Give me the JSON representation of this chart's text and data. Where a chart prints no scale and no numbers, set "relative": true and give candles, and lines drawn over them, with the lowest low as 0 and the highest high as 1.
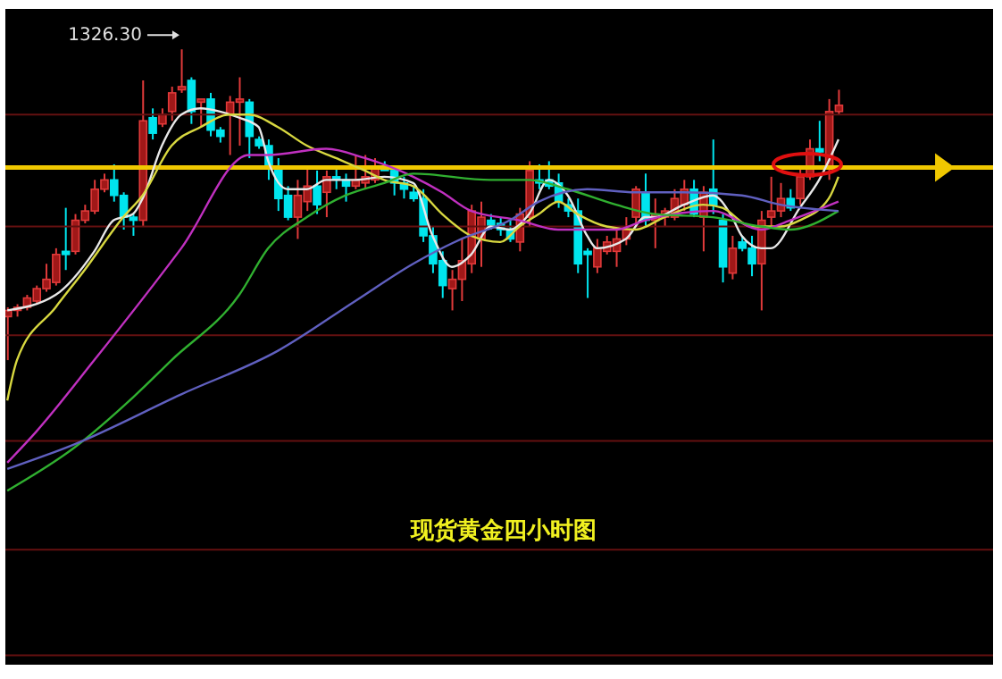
{
  "chart_data": {
    "type": "candlestick",
    "title": "现货黄金四小时图",
    "relative": true,
    "categories": [
      null,
      null,
      null,
      null,
      null,
      null,
      null,
      null,
      null,
      null,
      null,
      null,
      null,
      null,
      null,
      null,
      null,
      null,
      null,
      null,
      null,
      null,
      null,
      null,
      null,
      null,
      null,
      null,
      null,
      null,
      null,
      null,
      null,
      null,
      null,
      null,
      null,
      null,
      null,
      null,
      null,
      null,
      null,
      null,
      null,
      null,
      null,
      null,
      null,
      null,
      null,
      null,
      null,
      null,
      null,
      null,
      null,
      null,
      null,
      null,
      null,
      null,
      null,
      null,
      null,
      null,
      null,
      null,
      null,
      null,
      null,
      null,
      null,
      null,
      null,
      null,
      null,
      null,
      null,
      null,
      null,
      null,
      null,
      null,
      null,
      null,
      null
    ],
    "ohlc": [
      [
        0.14,
        0.17,
        0,
        0.16
      ],
      [
        0.16,
        0.18,
        0.14,
        0.17
      ],
      [
        0.17,
        0.21,
        0.16,
        0.2
      ],
      [
        0.19,
        0.24,
        0.18,
        0.23
      ],
      [
        0.23,
        0.31,
        0.22,
        0.26
      ],
      [
        0.25,
        0.36,
        0.24,
        0.34
      ],
      [
        0.35,
        0.49,
        0.29,
        0.34
      ],
      [
        0.35,
        0.47,
        0.34,
        0.45
      ],
      [
        0.45,
        0.5,
        0.44,
        0.48
      ],
      [
        0.48,
        0.58,
        0.47,
        0.55
      ],
      [
        0.55,
        0.6,
        0.54,
        0.58
      ],
      [
        0.58,
        0.63,
        0.51,
        0.53
      ],
      [
        0.53,
        0.54,
        0.42,
        0.46
      ],
      [
        0.46,
        0.47,
        0.4,
        0.45
      ],
      [
        0.45,
        0.9,
        0.43,
        0.77
      ],
      [
        0.78,
        0.81,
        0.71,
        0.73
      ],
      [
        0.76,
        0.81,
        0.75,
        0.79
      ],
      [
        0.8,
        0.88,
        0.77,
        0.86
      ],
      [
        0.87,
        1,
        0.86,
        0.88
      ],
      [
        0.9,
        0.91,
        0.76,
        0.8
      ],
      [
        0.83,
        0.84,
        0.75,
        0.84
      ],
      [
        0.84,
        0.86,
        0.72,
        0.74
      ],
      [
        0.74,
        0.75,
        0.7,
        0.72
      ],
      [
        0.79,
        0.85,
        0.66,
        0.83
      ],
      [
        0.83,
        0.91,
        0.69,
        0.84
      ],
      [
        0.83,
        0.84,
        0.65,
        0.72
      ],
      [
        0.71,
        0.72,
        0.68,
        0.69
      ],
      [
        0.69,
        0.71,
        0.58,
        0.62
      ],
      [
        0.62,
        0.65,
        0.48,
        0.52
      ],
      [
        0.53,
        0.56,
        0.45,
        0.46
      ],
      [
        0.46,
        0.58,
        0.39,
        0.53
      ],
      [
        0.51,
        0.62,
        0.48,
        0.56
      ],
      [
        0.56,
        0.61,
        0.47,
        0.5
      ],
      [
        0.54,
        0.61,
        0.46,
        0.59
      ],
      [
        0.59,
        0.62,
        0.55,
        0.58
      ],
      [
        0.58,
        0.6,
        0.51,
        0.56
      ],
      [
        0.56,
        0.66,
        0.55,
        0.58
      ],
      [
        0.57,
        0.66,
        0.55,
        0.59
      ],
      [
        0.58,
        0.65,
        0.57,
        0.62
      ],
      [
        0.62,
        0.64,
        0.61,
        0.61
      ],
      [
        0.61,
        0.62,
        0.53,
        0.57
      ],
      [
        0.57,
        0.59,
        0.52,
        0.55
      ],
      [
        0.54,
        0.56,
        0.51,
        0.52
      ],
      [
        0.52,
        0.55,
        0.38,
        0.4
      ],
      [
        0.4,
        0.43,
        0.28,
        0.31
      ],
      [
        0.32,
        0.35,
        0.2,
        0.24
      ],
      [
        0.23,
        0.29,
        0.16,
        0.26
      ],
      [
        0.26,
        0.39,
        0.19,
        0.32
      ],
      [
        0.31,
        0.5,
        0.28,
        0.48
      ],
      [
        0.39,
        0.51,
        0.3,
        0.46
      ],
      [
        0.45,
        0.47,
        0.42,
        0.43
      ],
      [
        0.44,
        0.46,
        0.4,
        0.42
      ],
      [
        0.42,
        0.45,
        0.38,
        0.39
      ],
      [
        0.38,
        0.49,
        0.35,
        0.47
      ],
      [
        0.46,
        0.64,
        0.43,
        0.61
      ],
      [
        0.58,
        0.63,
        0.55,
        0.57
      ],
      [
        0.58,
        0.64,
        0.55,
        0.56
      ],
      [
        0.57,
        0.6,
        0.49,
        0.51
      ],
      [
        0.5,
        0.52,
        0.46,
        0.48
      ],
      [
        0.48,
        0.52,
        0.28,
        0.31
      ],
      [
        0.35,
        0.36,
        0.2,
        0.34
      ],
      [
        0.3,
        0.39,
        0.28,
        0.36
      ],
      [
        0.35,
        0.4,
        0.34,
        0.38
      ],
      [
        0.35,
        0.42,
        0.3,
        0.39
      ],
      [
        0.39,
        0.46,
        0.37,
        0.42
      ],
      [
        0.46,
        0.56,
        0.43,
        0.55
      ],
      [
        0.54,
        0.6,
        0.43,
        0.45
      ],
      [
        0.45,
        0.52,
        0.36,
        0.47
      ],
      [
        0.46,
        0.49,
        0.43,
        0.48
      ],
      [
        0.46,
        0.55,
        0.45,
        0.52
      ],
      [
        0.5,
        0.58,
        0.48,
        0.55
      ],
      [
        0.55,
        0.58,
        0.46,
        0.47
      ],
      [
        0.46,
        0.56,
        0.35,
        0.54
      ],
      [
        0.55,
        0.71,
        0.47,
        0.5
      ],
      [
        0.45,
        0.47,
        0.25,
        0.3
      ],
      [
        0.28,
        0.4,
        0.26,
        0.36
      ],
      [
        0.38,
        0.4,
        0.35,
        0.36
      ],
      [
        0.36,
        0.4,
        0.27,
        0.31
      ],
      [
        0.31,
        0.48,
        0.16,
        0.45
      ],
      [
        0.46,
        0.59,
        0.43,
        0.48
      ],
      [
        0.48,
        0.57,
        0.46,
        0.52
      ],
      [
        0.52,
        0.55,
        0.48,
        0.49
      ],
      [
        0.52,
        0.62,
        0.5,
        0.59
      ],
      [
        0.59,
        0.71,
        0.58,
        0.68
      ],
      [
        0.68,
        0.77,
        0.64,
        0.67
      ],
      [
        0.62,
        0.84,
        0.58,
        0.8
      ],
      [
        0.8,
        0.87,
        0.79,
        0.82
      ]
    ],
    "series": [
      {
        "type": "line",
        "color": "#e8e8e8",
        "values": [
          0.16,
          null,
          null,
          null,
          null,
          0.21,
          null,
          null,
          null,
          0.35,
          null,
          0.45,
          null,
          0.47,
          0.52,
          null,
          0.69,
          null,
          0.79,
          null,
          0.81,
          null,
          0.8,
          null,
          0.78,
          null,
          0.75,
          0.64,
          null,
          0.55,
          null,
          0.55,
          null,
          0.58,
          null,
          null,
          0.58,
          null,
          null,
          0.59,
          null,
          null,
          0.57,
          null,
          0.4,
          null,
          0.3,
          null,
          0.34,
          null,
          0.43,
          null,
          0.42,
          null,
          0.47,
          null,
          0.58,
          null,
          0.53,
          null,
          0.4,
          0.36,
          null,
          null,
          0.39,
          null,
          0.46,
          0.46,
          null,
          null,
          0.5,
          null,
          null,
          0.53,
          null,
          0.46,
          0.4,
          null,
          0.36,
          0.36,
          null,
          null,
          0.49,
          null,
          0.58,
          null,
          0.71
        ]
      },
      {
        "type": "line",
        "color": "#d8d840",
        "values": [
          -0.13,
          0,
          null,
          null,
          null,
          0.17,
          null,
          null,
          0.29,
          null,
          null,
          null,
          0.46,
          null,
          0.53,
          null,
          null,
          0.69,
          null,
          null,
          0.75,
          null,
          null,
          0.79,
          null,
          0.79,
          null,
          null,
          0.75,
          null,
          null,
          0.69,
          null,
          null,
          0.65,
          null,
          null,
          0.61,
          null,
          0.58,
          null,
          null,
          0.56,
          null,
          null,
          0.47,
          null,
          null,
          0.4,
          null,
          null,
          0.38,
          null,
          0.43,
          null,
          0.47,
          null,
          0.51,
          null,
          0.47,
          null,
          null,
          0.43,
          null,
          null,
          0.42,
          null,
          null,
          0.46,
          null,
          null,
          null,
          0.5,
          null,
          0.49,
          null,
          null,
          0.43,
          null,
          null,
          0.43,
          null,
          0.45,
          null,
          null,
          0.52,
          0.59
        ]
      },
      {
        "type": "line",
        "color": "#c030c0",
        "values": [
          -0.33,
          null,
          null,
          -0.23,
          null,
          null,
          null,
          null,
          null,
          0,
          null,
          null,
          null,
          null,
          null,
          null,
          null,
          null,
          0.36,
          null,
          null,
          null,
          null,
          null,
          null,
          0.66,
          null,
          0.66,
          null,
          null,
          null,
          null,
          null,
          0.68,
          null,
          null,
          null,
          0.65,
          null,
          null,
          null,
          null,
          0.59,
          null,
          null,
          0.54,
          null,
          null,
          0.48,
          null,
          null,
          null,
          null,
          0.45,
          null,
          null,
          null,
          0.42,
          null,
          null,
          null,
          null,
          null,
          0.42,
          null,
          null,
          0.45,
          null,
          null,
          null,
          null,
          null,
          null,
          0.48,
          null,
          null,
          null,
          null,
          0.42,
          null,
          null,
          0.45,
          null,
          null,
          null,
          null,
          0.51
        ]
      },
      {
        "type": "line",
        "color": "#30b030",
        "values": [
          -0.42,
          null,
          null,
          null,
          null,
          null,
          null,
          -0.28,
          null,
          null,
          null,
          null,
          null,
          -0.12,
          null,
          null,
          null,
          0,
          null,
          null,
          null,
          null,
          null,
          null,
          0.21,
          null,
          null,
          0.36,
          null,
          null,
          null,
          0.46,
          null,
          null,
          null,
          0.53,
          null,
          null,
          null,
          0.57,
          null,
          null,
          0.6,
          null,
          null,
          null,
          null,
          null,
          null,
          null,
          0.58,
          null,
          null,
          null,
          0.58,
          null,
          null,
          null,
          0.55,
          null,
          null,
          null,
          null,
          0.5,
          null,
          null,
          null,
          0.47,
          null,
          null,
          null,
          null,
          null,
          0.46,
          null,
          null,
          null,
          null,
          0.43,
          null,
          null,
          0.42,
          null,
          null,
          null,
          null,
          0.48
        ]
      },
      {
        "type": "line",
        "color": "#6060c0",
        "values": [
          -0.35,
          null,
          null,
          null,
          null,
          null,
          null,
          -0.27,
          null,
          null,
          null,
          null,
          null,
          null,
          null,
          null,
          null,
          null,
          -0.11,
          null,
          null,
          null,
          null,
          null,
          null,
          null,
          null,
          null,
          0.03,
          null,
          null,
          null,
          null,
          null,
          null,
          null,
          0.19,
          null,
          null,
          null,
          null,
          null,
          0.31,
          null,
          null,
          null,
          null,
          0.39,
          null,
          null,
          null,
          null,
          0.45,
          null,
          null,
          0.51,
          null,
          null,
          null,
          null,
          0.55,
          null,
          null,
          null,
          null,
          0.54,
          null,
          null,
          null,
          null,
          0.54,
          null,
          null,
          null,
          null,
          null,
          0.53,
          null,
          null,
          null,
          0.5,
          null,
          null,
          null,
          null,
          null,
          0.48
        ]
      }
    ],
    "ref_lines": [
      {
        "axis": "y",
        "value": 0.62,
        "color": "#f0c800"
      },
      {
        "axis": "y",
        "value": 0.79,
        "color": "#641010"
      },
      {
        "axis": "y",
        "value": 0.43,
        "color": "#641010"
      },
      {
        "axis": "y",
        "value": 0.08,
        "color": "#641010"
      },
      {
        "axis": "y",
        "value": -0.26,
        "color": "#641010"
      },
      {
        "axis": "y",
        "value": -0.61,
        "color": "#641010"
      },
      {
        "axis": "y",
        "value": -0.95,
        "color": "#641010"
      }
    ],
    "annotations": [
      "1326.30"
    ]
  }
}
